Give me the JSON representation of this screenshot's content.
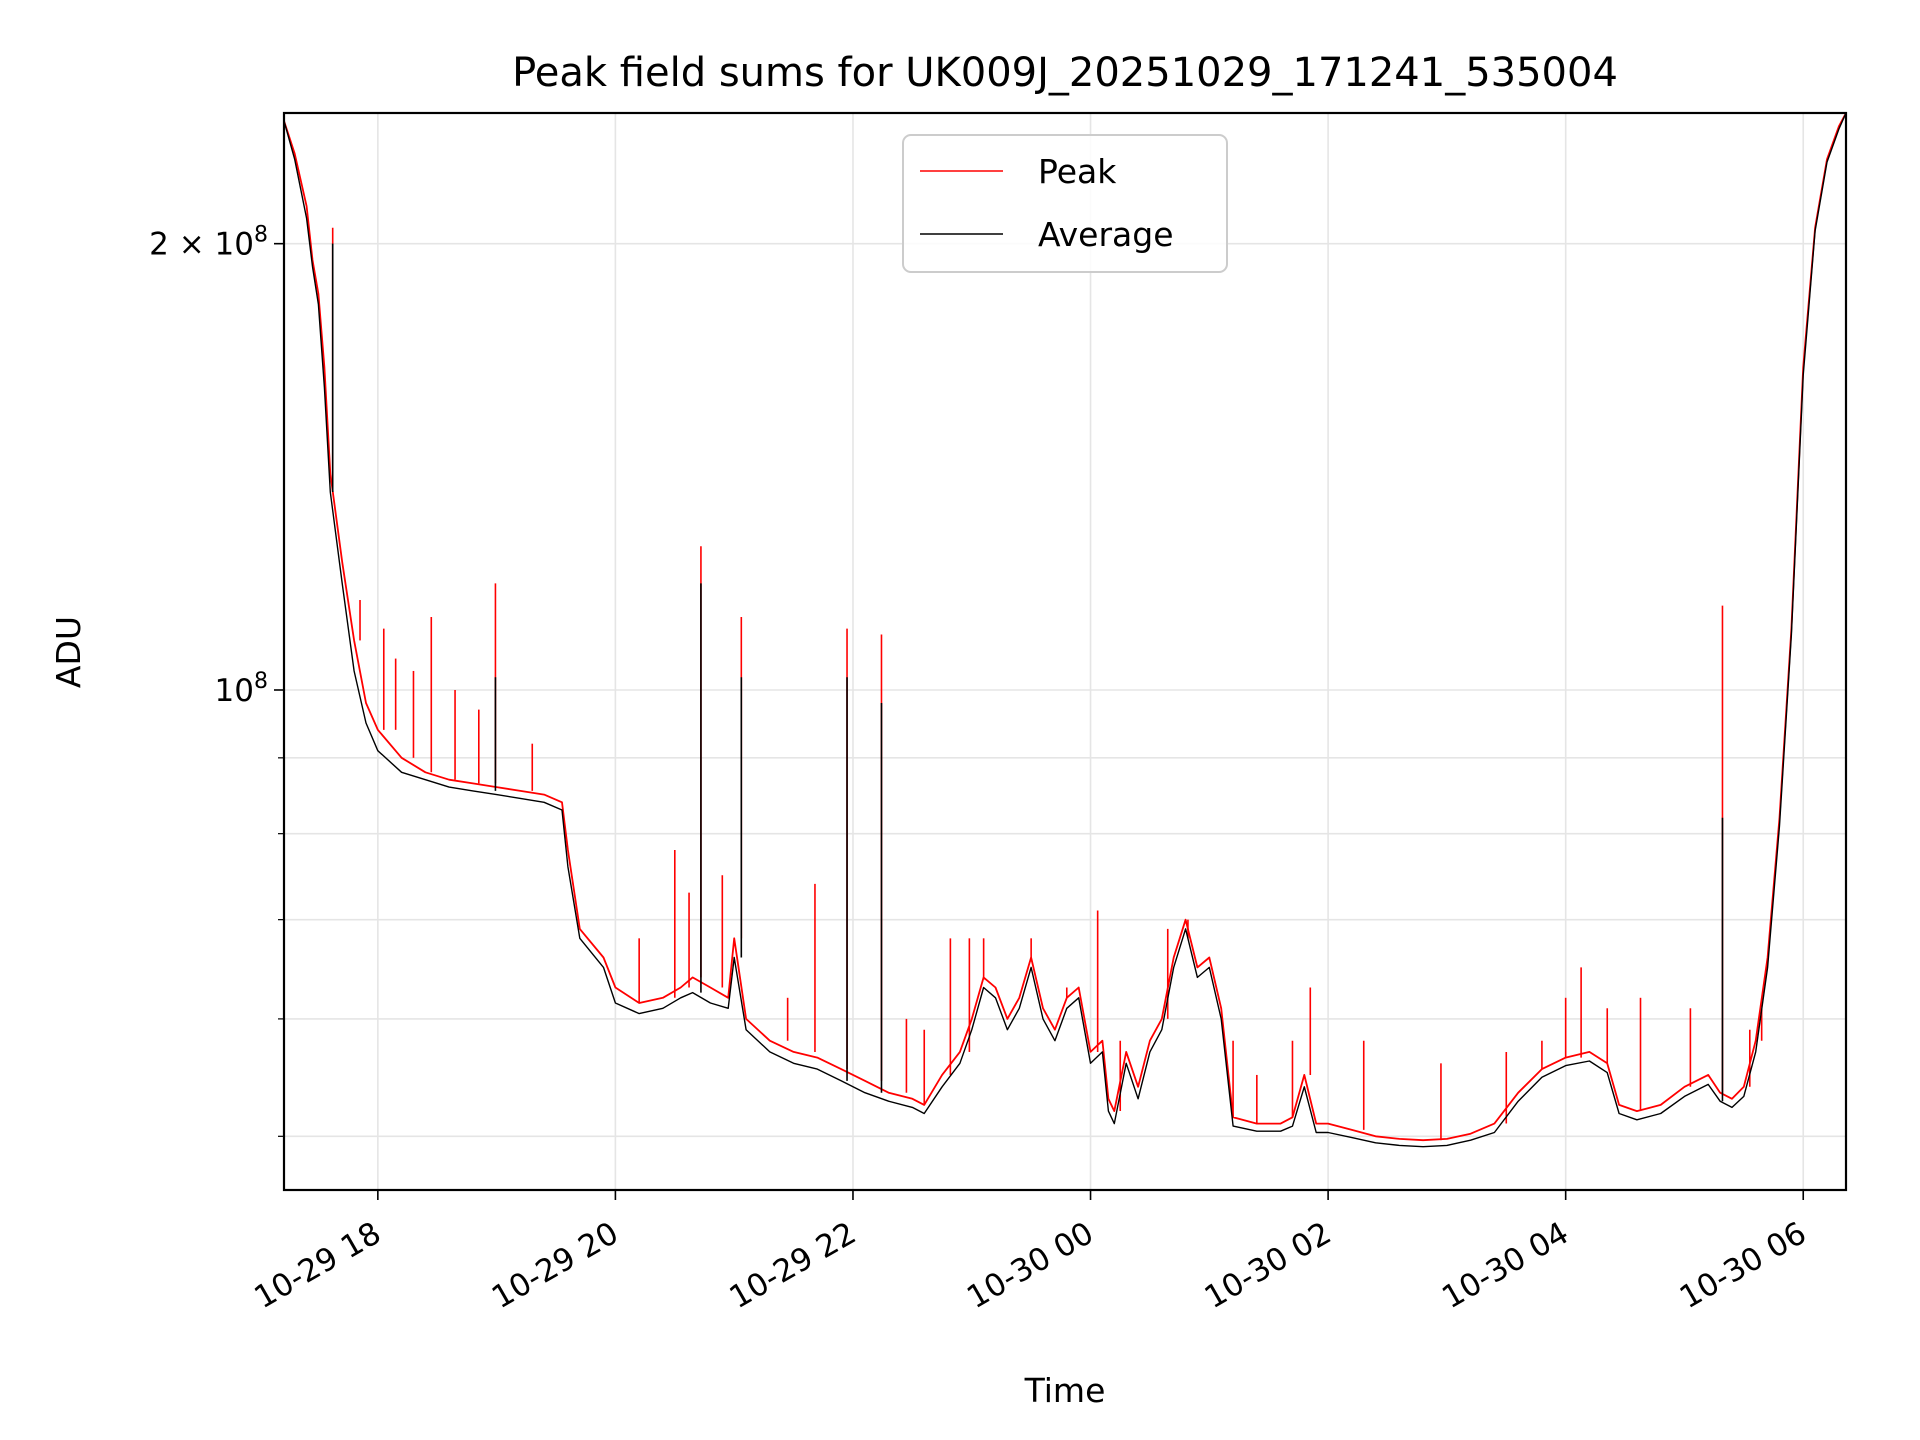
{
  "chart_data": {
    "type": "line",
    "title": "Peak field sums for UK009J_20251029_171241_535004",
    "xlabel": "Time",
    "ylabel": "ADU",
    "yscale": "log",
    "ylim": [
      46000000,
      245000000
    ],
    "xlim_hours": [
      17.21,
      30.36
    ],
    "grid": true,
    "legend_position": "top-center",
    "x_ticks": [
      {
        "hour": 18,
        "label": "10-29 18"
      },
      {
        "hour": 20,
        "label": "10-29 20"
      },
      {
        "hour": 22,
        "label": "10-29 22"
      },
      {
        "hour": 24,
        "label": "10-30 00"
      },
      {
        "hour": 26,
        "label": "10-30 02"
      },
      {
        "hour": 28,
        "label": "10-30 04"
      },
      {
        "hour": 30,
        "label": "10-30 06"
      }
    ],
    "y_major_ticks": [
      {
        "value": 100000000,
        "base": "10",
        "exp": "8",
        "prefix": ""
      },
      {
        "value": 200000000,
        "base": "10",
        "exp": "8",
        "prefix": "2 × "
      }
    ],
    "y_minor_ticks": [
      50000000,
      60000000,
      70000000,
      80000000,
      90000000
    ],
    "series": [
      {
        "name": "Peak",
        "color": "#ff0000",
        "points": [
          [
            17.21,
            242000000
          ],
          [
            17.3,
            230000000
          ],
          [
            17.4,
            212000000
          ],
          [
            17.45,
            195000000
          ],
          [
            17.5,
            185000000
          ],
          [
            17.55,
            165000000
          ],
          [
            17.6,
            140000000
          ],
          [
            17.7,
            122000000
          ],
          [
            17.8,
            108000000
          ],
          [
            17.9,
            98000000
          ],
          [
            18.0,
            94000000
          ],
          [
            18.2,
            90000000
          ],
          [
            18.4,
            88000000
          ],
          [
            18.6,
            87000000
          ],
          [
            18.8,
            86500000
          ],
          [
            19.0,
            86000000
          ],
          [
            19.2,
            85500000
          ],
          [
            19.4,
            85000000
          ],
          [
            19.55,
            84000000
          ],
          [
            19.6,
            78000000
          ],
          [
            19.7,
            69000000
          ],
          [
            19.9,
            66000000
          ],
          [
            20.0,
            63000000
          ],
          [
            20.2,
            61500000
          ],
          [
            20.4,
            62000000
          ],
          [
            20.55,
            63000000
          ],
          [
            20.65,
            64000000
          ],
          [
            20.8,
            63000000
          ],
          [
            20.95,
            62000000
          ],
          [
            21.0,
            68000000
          ],
          [
            21.1,
            60000000
          ],
          [
            21.3,
            58000000
          ],
          [
            21.5,
            57000000
          ],
          [
            21.7,
            56500000
          ],
          [
            21.9,
            55500000
          ],
          [
            22.1,
            54500000
          ],
          [
            22.3,
            53500000
          ],
          [
            22.5,
            53000000
          ],
          [
            22.6,
            52500000
          ],
          [
            22.75,
            55000000
          ],
          [
            22.9,
            57000000
          ],
          [
            23.0,
            60000000
          ],
          [
            23.1,
            64000000
          ],
          [
            23.2,
            63000000
          ],
          [
            23.3,
            60000000
          ],
          [
            23.4,
            62000000
          ],
          [
            23.5,
            66000000
          ],
          [
            23.6,
            61000000
          ],
          [
            23.7,
            59000000
          ],
          [
            23.8,
            62000000
          ],
          [
            23.9,
            63000000
          ],
          [
            24.0,
            57000000
          ],
          [
            24.1,
            58000000
          ],
          [
            24.15,
            53000000
          ],
          [
            24.2,
            52000000
          ],
          [
            24.3,
            57000000
          ],
          [
            24.4,
            54000000
          ],
          [
            24.5,
            58000000
          ],
          [
            24.6,
            60000000
          ],
          [
            24.7,
            66000000
          ],
          [
            24.8,
            70000000
          ],
          [
            24.9,
            65000000
          ],
          [
            25.0,
            66000000
          ],
          [
            25.1,
            61000000
          ],
          [
            25.2,
            51500000
          ],
          [
            25.4,
            51000000
          ],
          [
            25.6,
            51000000
          ],
          [
            25.7,
            51500000
          ],
          [
            25.8,
            55000000
          ],
          [
            25.9,
            51000000
          ],
          [
            26.0,
            51000000
          ],
          [
            26.2,
            50500000
          ],
          [
            26.4,
            50000000
          ],
          [
            26.6,
            49800000
          ],
          [
            26.8,
            49700000
          ],
          [
            27.0,
            49800000
          ],
          [
            27.2,
            50200000
          ],
          [
            27.4,
            51000000
          ],
          [
            27.6,
            53500000
          ],
          [
            27.8,
            55500000
          ],
          [
            28.0,
            56500000
          ],
          [
            28.2,
            57000000
          ],
          [
            28.35,
            56000000
          ],
          [
            28.45,
            52500000
          ],
          [
            28.6,
            52000000
          ],
          [
            28.8,
            52500000
          ],
          [
            29.0,
            54000000
          ],
          [
            29.2,
            55000000
          ],
          [
            29.3,
            53500000
          ],
          [
            29.4,
            53000000
          ],
          [
            29.5,
            54000000
          ],
          [
            29.6,
            58000000
          ],
          [
            29.7,
            66000000
          ],
          [
            29.8,
            82000000
          ],
          [
            29.9,
            110000000
          ],
          [
            30.0,
            165000000
          ],
          [
            30.1,
            205000000
          ],
          [
            30.2,
            228000000
          ],
          [
            30.3,
            240000000
          ],
          [
            30.36,
            245000000
          ]
        ],
        "spikes": [
          [
            17.62,
            205000000
          ],
          [
            17.85,
            115000000
          ],
          [
            18.05,
            110000000
          ],
          [
            18.15,
            105000000
          ],
          [
            18.3,
            103000000
          ],
          [
            18.45,
            112000000
          ],
          [
            18.65,
            100000000
          ],
          [
            18.85,
            97000000
          ],
          [
            18.99,
            118000000
          ],
          [
            19.3,
            92000000
          ],
          [
            20.2,
            68000000
          ],
          [
            20.5,
            78000000
          ],
          [
            20.62,
            73000000
          ],
          [
            20.72,
            125000000
          ],
          [
            20.9,
            75000000
          ],
          [
            21.06,
            112000000
          ],
          [
            21.45,
            62000000
          ],
          [
            21.68,
            74000000
          ],
          [
            21.95,
            110000000
          ],
          [
            22.24,
            109000000
          ],
          [
            22.45,
            60000000
          ],
          [
            22.6,
            59000000
          ],
          [
            22.82,
            68000000
          ],
          [
            22.98,
            68000000
          ],
          [
            23.1,
            68000000
          ],
          [
            23.5,
            68000000
          ],
          [
            23.8,
            63000000
          ],
          [
            24.06,
            71000000
          ],
          [
            24.25,
            58000000
          ],
          [
            24.65,
            69000000
          ],
          [
            24.82,
            68000000
          ],
          [
            25.2,
            58000000
          ],
          [
            25.4,
            55000000
          ],
          [
            25.7,
            58000000
          ],
          [
            25.85,
            63000000
          ],
          [
            26.3,
            58000000
          ],
          [
            26.95,
            56000000
          ],
          [
            27.5,
            57000000
          ],
          [
            27.8,
            58000000
          ],
          [
            28.0,
            62000000
          ],
          [
            28.13,
            65000000
          ],
          [
            28.35,
            61000000
          ],
          [
            28.63,
            62000000
          ],
          [
            29.05,
            61000000
          ],
          [
            29.32,
            114000000
          ],
          [
            29.55,
            59000000
          ],
          [
            29.65,
            61000000
          ]
        ]
      },
      {
        "name": "Average",
        "color": "#000000",
        "points": [
          [
            17.21,
            242000000
          ],
          [
            17.3,
            228000000
          ],
          [
            17.4,
            208000000
          ],
          [
            17.45,
            193000000
          ],
          [
            17.5,
            182000000
          ],
          [
            17.55,
            160000000
          ],
          [
            17.6,
            136000000
          ],
          [
            17.7,
            118000000
          ],
          [
            17.8,
            103000000
          ],
          [
            17.9,
            95000000
          ],
          [
            18.0,
            91000000
          ],
          [
            18.2,
            88000000
          ],
          [
            18.4,
            87000000
          ],
          [
            18.6,
            86000000
          ],
          [
            18.8,
            85500000
          ],
          [
            19.0,
            85000000
          ],
          [
            19.2,
            84500000
          ],
          [
            19.4,
            84000000
          ],
          [
            19.55,
            83000000
          ],
          [
            19.6,
            76000000
          ],
          [
            19.7,
            68000000
          ],
          [
            19.9,
            65000000
          ],
          [
            20.0,
            61500000
          ],
          [
            20.2,
            60500000
          ],
          [
            20.4,
            61000000
          ],
          [
            20.55,
            62000000
          ],
          [
            20.65,
            62500000
          ],
          [
            20.8,
            61500000
          ],
          [
            20.95,
            61000000
          ],
          [
            21.0,
            66000000
          ],
          [
            21.1,
            59000000
          ],
          [
            21.3,
            57000000
          ],
          [
            21.5,
            56000000
          ],
          [
            21.7,
            55500000
          ],
          [
            21.9,
            54500000
          ],
          [
            22.1,
            53500000
          ],
          [
            22.3,
            52800000
          ],
          [
            22.5,
            52300000
          ],
          [
            22.6,
            51800000
          ],
          [
            22.75,
            54000000
          ],
          [
            22.9,
            56000000
          ],
          [
            23.0,
            59000000
          ],
          [
            23.1,
            63000000
          ],
          [
            23.2,
            62000000
          ],
          [
            23.3,
            59000000
          ],
          [
            23.4,
            61000000
          ],
          [
            23.5,
            65000000
          ],
          [
            23.6,
            60000000
          ],
          [
            23.7,
            58000000
          ],
          [
            23.8,
            61000000
          ],
          [
            23.9,
            62000000
          ],
          [
            24.0,
            56000000
          ],
          [
            24.1,
            57000000
          ],
          [
            24.15,
            52000000
          ],
          [
            24.2,
            51000000
          ],
          [
            24.3,
            56000000
          ],
          [
            24.4,
            53000000
          ],
          [
            24.5,
            57000000
          ],
          [
            24.6,
            59000000
          ],
          [
            24.7,
            65000000
          ],
          [
            24.8,
            69000000
          ],
          [
            24.9,
            64000000
          ],
          [
            25.0,
            65000000
          ],
          [
            25.1,
            60000000
          ],
          [
            25.2,
            50800000
          ],
          [
            25.4,
            50400000
          ],
          [
            25.6,
            50400000
          ],
          [
            25.7,
            50800000
          ],
          [
            25.8,
            54000000
          ],
          [
            25.9,
            50300000
          ],
          [
            26.0,
            50300000
          ],
          [
            26.2,
            49900000
          ],
          [
            26.4,
            49500000
          ],
          [
            26.6,
            49300000
          ],
          [
            26.8,
            49200000
          ],
          [
            27.0,
            49300000
          ],
          [
            27.2,
            49700000
          ],
          [
            27.4,
            50300000
          ],
          [
            27.6,
            52800000
          ],
          [
            27.8,
            54800000
          ],
          [
            28.0,
            55800000
          ],
          [
            28.2,
            56200000
          ],
          [
            28.35,
            55200000
          ],
          [
            28.45,
            51800000
          ],
          [
            28.6,
            51300000
          ],
          [
            28.8,
            51800000
          ],
          [
            29.0,
            53200000
          ],
          [
            29.2,
            54200000
          ],
          [
            29.3,
            52800000
          ],
          [
            29.4,
            52300000
          ],
          [
            29.5,
            53200000
          ],
          [
            29.6,
            57000000
          ],
          [
            29.7,
            65000000
          ],
          [
            29.8,
            81000000
          ],
          [
            29.9,
            109000000
          ],
          [
            30.0,
            163000000
          ],
          [
            30.1,
            204000000
          ],
          [
            30.2,
            227000000
          ],
          [
            30.3,
            239000000
          ],
          [
            30.36,
            245000000
          ]
        ],
        "spikes": [
          [
            17.62,
            200000000
          ],
          [
            18.99,
            102000000
          ],
          [
            20.72,
            118000000
          ],
          [
            21.06,
            102000000
          ],
          [
            21.95,
            102000000
          ],
          [
            22.24,
            98000000
          ],
          [
            29.32,
            82000000
          ]
        ]
      }
    ]
  }
}
